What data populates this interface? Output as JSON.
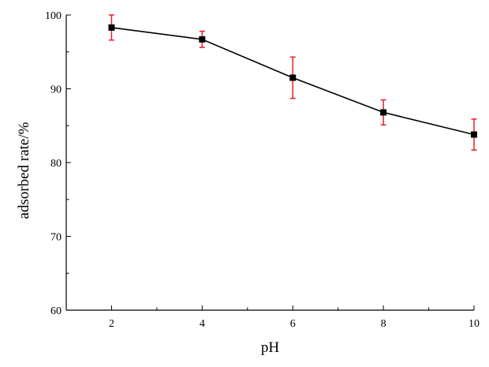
{
  "chart_data": {
    "type": "line",
    "title": "",
    "xlabel": "pH",
    "ylabel": "adsorbed rate/%",
    "x": [
      2,
      4,
      6,
      8,
      10
    ],
    "series": [
      {
        "values": [
          98.3,
          96.7,
          91.5,
          86.8,
          83.8
        ],
        "error": [
          1.7,
          1.1,
          2.8,
          1.7,
          2.1
        ]
      }
    ],
    "xlim": [
      1,
      10
    ],
    "ylim": [
      60,
      100
    ],
    "xticks": [
      2,
      4,
      6,
      8,
      10
    ],
    "yticks": [
      60,
      70,
      80,
      90,
      100
    ],
    "grid": false,
    "colors": {
      "line": "#000000",
      "marker": "#000000",
      "error_bar": "#e8202a",
      "axis": "#000000"
    }
  }
}
